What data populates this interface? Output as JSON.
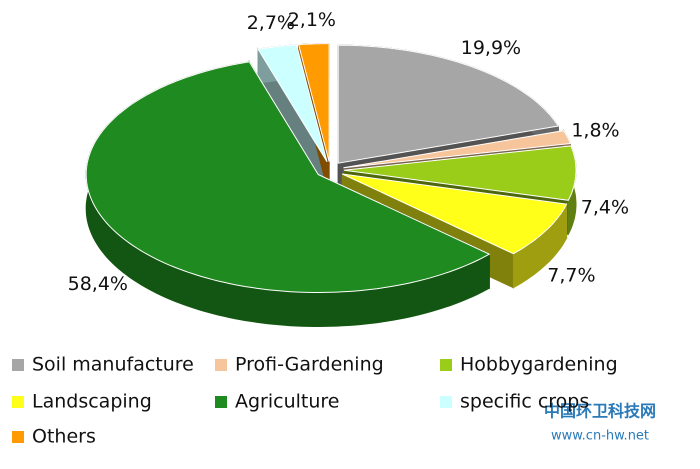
{
  "chart_data": {
    "type": "pie",
    "categories": [
      "Soil manufacture",
      "Profi-Gardening",
      "Hobbygardening",
      "Landscaping",
      "Agriculture",
      "specific crops",
      "Others"
    ],
    "values": [
      19.9,
      1.8,
      7.4,
      7.7,
      58.4,
      2.7,
      2.1
    ],
    "value_labels": [
      "19,9%",
      "1,8%",
      "7,4%",
      "7,7%",
      "58,4%",
      "2,7%",
      "2,1%"
    ],
    "colors": [
      "#a6a6a6",
      "#f7c59b",
      "#9acd1a",
      "#ffff1a",
      "#1f8a1f",
      "#ccffff",
      "#ff9a00"
    ],
    "legend": "bottom"
  },
  "watermark": {
    "title": "中国环卫科技网",
    "url": "www.cn-hw.net"
  }
}
